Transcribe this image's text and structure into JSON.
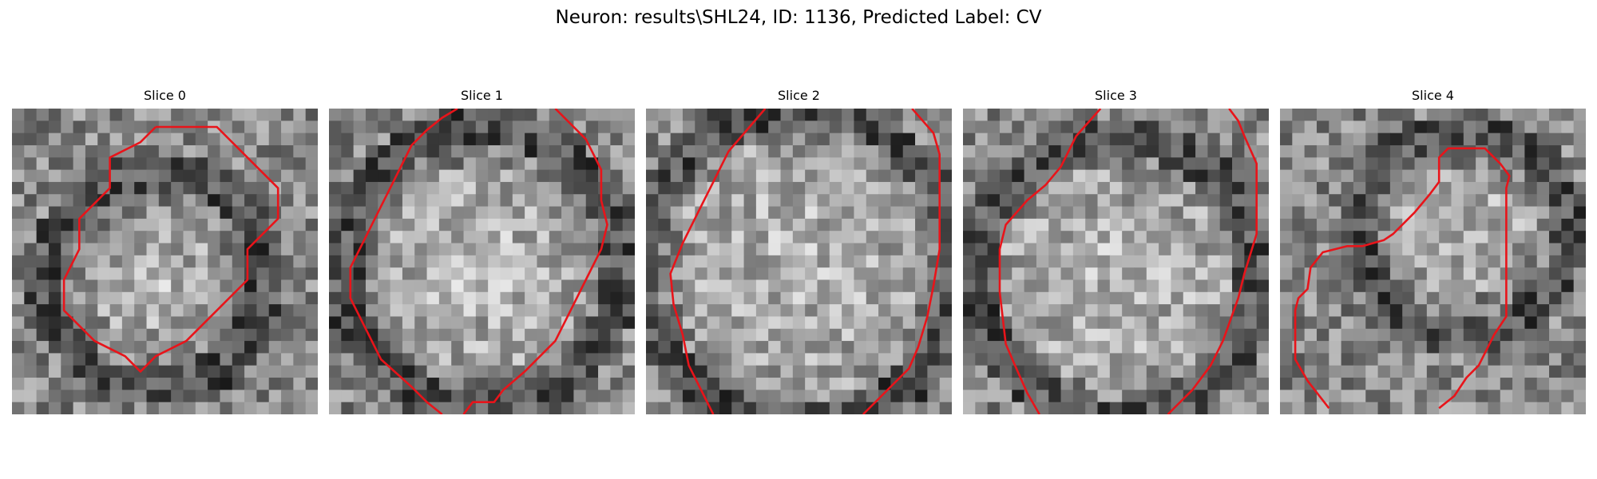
{
  "figure": {
    "title": "Neuron: results\\SHL24, ID: 1136, Predicted Label: CV"
  },
  "colors": {
    "contour": "#e8141a",
    "background": "#ffffff"
  },
  "panels": [
    {
      "title": "Slice 0",
      "contour": [
        [
          4.7,
          0.6
        ],
        [
          6.7,
          0.6
        ],
        [
          7.7,
          1.6
        ],
        [
          8.7,
          2.6
        ],
        [
          8.7,
          3.6
        ],
        [
          7.7,
          4.6
        ],
        [
          7.7,
          5.6
        ],
        [
          6.7,
          6.6
        ],
        [
          5.7,
          7.6
        ],
        [
          4.7,
          8.1
        ],
        [
          4.2,
          8.6
        ],
        [
          3.7,
          8.1
        ],
        [
          2.7,
          7.6
        ],
        [
          1.7,
          6.6
        ],
        [
          1.7,
          5.6
        ],
        [
          2.2,
          4.6
        ],
        [
          2.2,
          3.6
        ],
        [
          3.2,
          2.6
        ],
        [
          3.2,
          1.6
        ],
        [
          4.2,
          1.1
        ],
        [
          4.7,
          0.6
        ]
      ]
    },
    {
      "title": "Slice 1",
      "contour": [
        [
          4.2,
          0
        ],
        [
          3.7,
          0.3
        ],
        [
          3.2,
          0.7
        ],
        [
          2.7,
          1.2
        ],
        [
          2.2,
          2.2
        ],
        [
          1.7,
          3.2
        ],
        [
          1.2,
          4.2
        ],
        [
          0.7,
          5.2
        ],
        [
          0.7,
          6.2
        ],
        [
          1.2,
          7.2
        ],
        [
          1.7,
          8.2
        ],
        [
          2.7,
          9.1
        ],
        [
          3.2,
          9.6
        ],
        [
          3.7,
          10
        ]
      ],
      "contour2": [
        [
          7.4,
          0
        ],
        [
          8.4,
          1
        ],
        [
          8.9,
          2
        ],
        [
          8.9,
          3
        ],
        [
          9.1,
          3.8
        ],
        [
          8.9,
          4.6
        ],
        [
          8.4,
          5.6
        ],
        [
          7.9,
          6.6
        ],
        [
          7.4,
          7.6
        ],
        [
          6.4,
          8.6
        ],
        [
          5.7,
          9.2
        ],
        [
          5.4,
          9.6
        ],
        [
          4.7,
          9.6
        ],
        [
          4.4,
          10
        ]
      ]
    },
    {
      "title": "Slice 2",
      "contour": [
        [
          3.9,
          0
        ],
        [
          2.7,
          1.4
        ],
        [
          2.2,
          2.4
        ],
        [
          1.7,
          3.4
        ],
        [
          1.2,
          4.4
        ],
        [
          0.8,
          5.4
        ],
        [
          0.9,
          6.4
        ],
        [
          1.2,
          7.4
        ],
        [
          1.4,
          8.4
        ],
        [
          1.9,
          9.4
        ],
        [
          2.2,
          10
        ]
      ],
      "contour2": [
        [
          8.7,
          0
        ],
        [
          9.4,
          0.8
        ],
        [
          9.6,
          1.5
        ],
        [
          9.6,
          2.6
        ],
        [
          9.6,
          3.6
        ],
        [
          9.6,
          4.6
        ],
        [
          9.4,
          5.8
        ],
        [
          9.2,
          6.8
        ],
        [
          8.9,
          7.8
        ],
        [
          8.6,
          8.5
        ],
        [
          7.7,
          9.4
        ],
        [
          7.1,
          10
        ]
      ]
    },
    {
      "title": "Slice 3",
      "contour": [
        [
          4.5,
          0
        ],
        [
          3.7,
          0.9
        ],
        [
          3.2,
          1.9
        ],
        [
          2.7,
          2.5
        ],
        [
          2.1,
          3
        ],
        [
          1.4,
          3.8
        ],
        [
          1.2,
          4.6
        ],
        [
          1.2,
          6
        ],
        [
          1.4,
          7.7
        ],
        [
          1.7,
          8.4
        ],
        [
          2.1,
          9.3
        ],
        [
          2.5,
          10
        ]
      ],
      "contour2": [
        [
          8.7,
          0
        ],
        [
          9,
          0.4
        ],
        [
          9.2,
          0.9
        ],
        [
          9.6,
          1.8
        ],
        [
          9.6,
          3
        ],
        [
          9.6,
          4.1
        ],
        [
          9.2,
          5.4
        ],
        [
          9.0,
          6.2
        ],
        [
          8.5,
          7.6
        ],
        [
          8.1,
          8.4
        ],
        [
          7.5,
          9.2
        ],
        [
          7.0,
          9.7
        ],
        [
          6.7,
          10
        ]
      ]
    },
    {
      "title": "Slice 4",
      "contour": [
        [
          1.6,
          9.8
        ],
        [
          0.9,
          8.9
        ],
        [
          0.5,
          8.2
        ],
        [
          0.5,
          6.6
        ],
        [
          0.6,
          6.2
        ],
        [
          0.9,
          5.9
        ],
        [
          1.0,
          5.2
        ],
        [
          1.4,
          4.7
        ],
        [
          2.2,
          4.5
        ],
        [
          2.7,
          4.5
        ],
        [
          3.4,
          4.3
        ],
        [
          3.7,
          4.1
        ],
        [
          4.4,
          3.4
        ],
        [
          4.9,
          2.8
        ],
        [
          5.2,
          2.4
        ],
        [
          5.2,
          1.6
        ],
        [
          5.5,
          1.3
        ],
        [
          6.2,
          1.3
        ],
        [
          6.7,
          1.3
        ],
        [
          7.2,
          1.8
        ],
        [
          7.5,
          2.2
        ],
        [
          7.4,
          2.6
        ],
        [
          7.4,
          3.8
        ],
        [
          7.4,
          5.8
        ],
        [
          7.4,
          6.8
        ],
        [
          7.0,
          7.4
        ],
        [
          6.5,
          8.4
        ],
        [
          6.1,
          8.8
        ],
        [
          5.7,
          9.4
        ],
        [
          5.2,
          9.8
        ]
      ]
    }
  ]
}
